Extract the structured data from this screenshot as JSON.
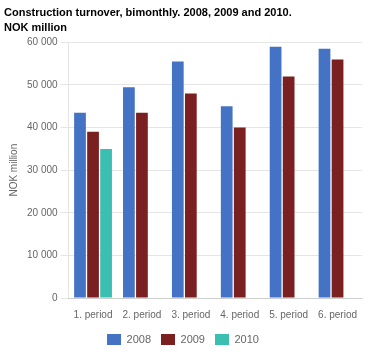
{
  "chart_data": {
    "type": "bar",
    "title": "Construction turnover, bimonthly. 2008, 2009 and 2010.",
    "subtitle": "NOK million",
    "ylabel": "NOK million",
    "categories": [
      "1. period",
      "2. period",
      "3. period",
      "4. period",
      "5. period",
      "6. period"
    ],
    "series": [
      {
        "name": "2008",
        "color": "#4472C4",
        "values": [
          43500,
          49500,
          55500,
          45000,
          59000,
          58500
        ]
      },
      {
        "name": "2009",
        "color": "#7B2020",
        "values": [
          39000,
          43500,
          48000,
          40000,
          52000,
          56000
        ]
      },
      {
        "name": "2010",
        "color": "#3ABFB1",
        "values": [
          35000,
          null,
          null,
          null,
          null,
          null
        ]
      }
    ],
    "ylim": [
      0,
      60000
    ],
    "yticks": [
      0,
      {
        "value": 10000,
        "label": "10 000"
      },
      {
        "value": 20000,
        "label": "20 000"
      },
      {
        "value": 30000,
        "label": "30 000"
      },
      {
        "value": 40000,
        "label": "40 000"
      },
      {
        "value": 50000,
        "label": "50 000"
      },
      {
        "value": 60000,
        "label": "60 000"
      }
    ],
    "grid": true,
    "legend": "bottom"
  }
}
